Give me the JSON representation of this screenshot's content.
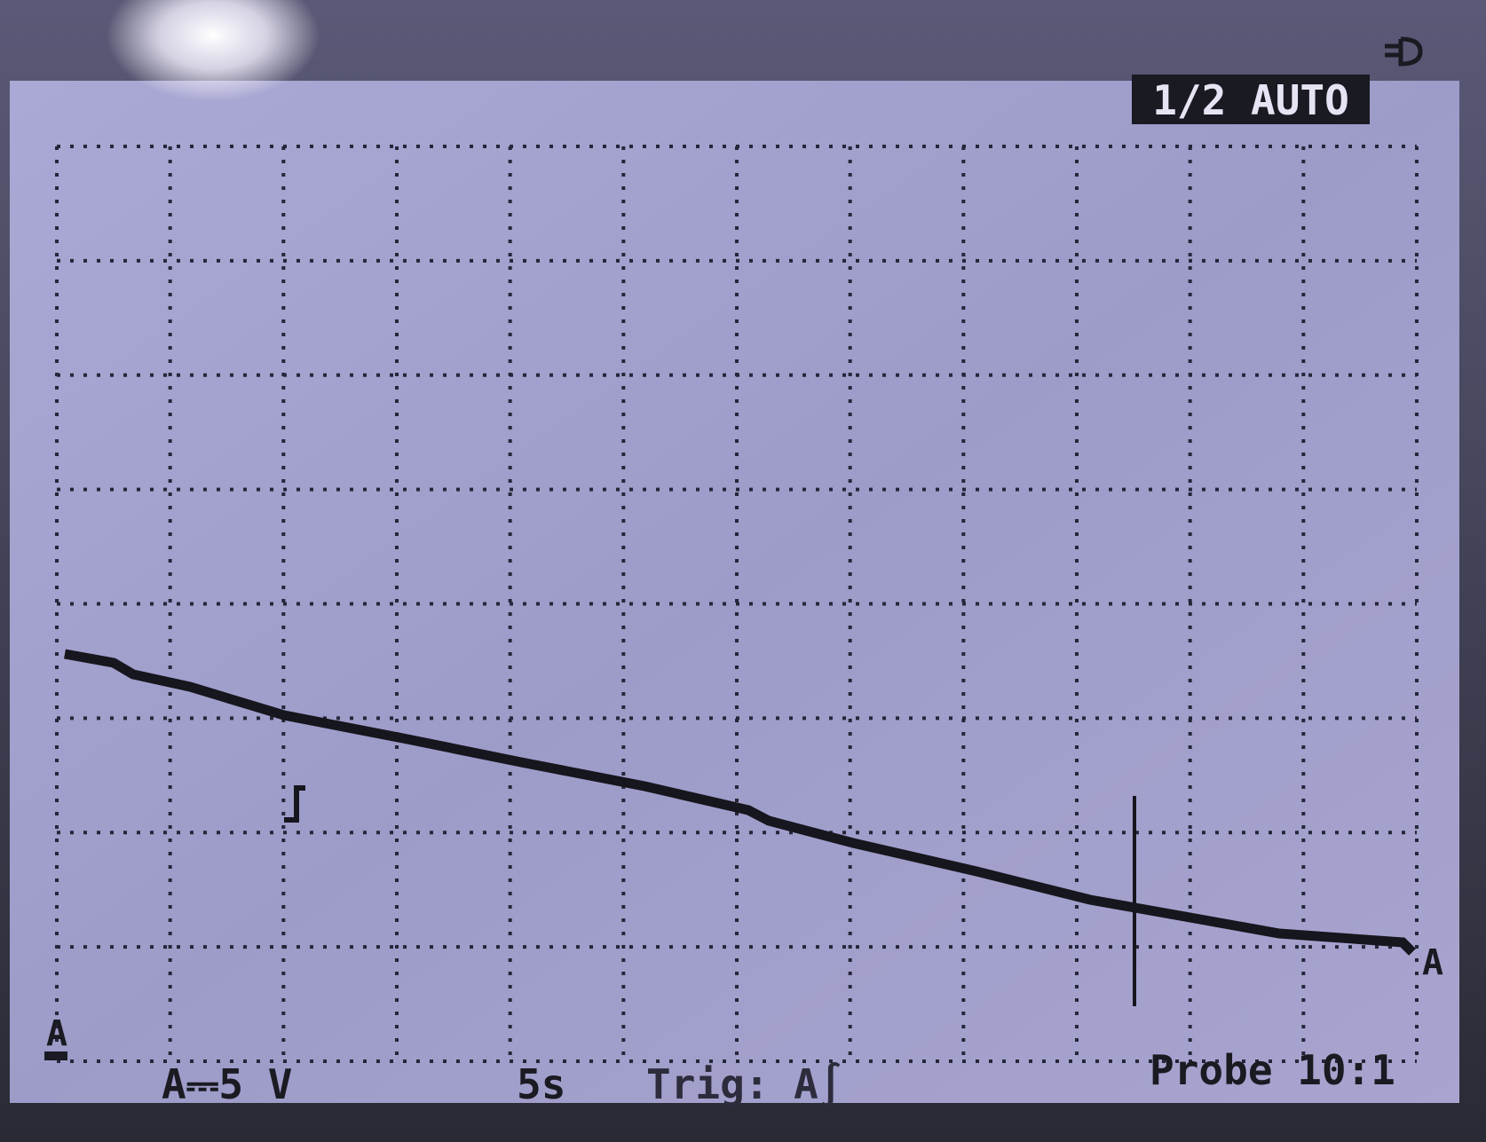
{
  "mode_badge": "1/2 AUTO",
  "trace_label_left": "A",
  "trace_label_right": "A",
  "status_bar": {
    "channel_scale": "A⎓5 V",
    "timebase": "5s",
    "trigger": "Trig: A∫",
    "probe": "Probe 10:1"
  }
}
